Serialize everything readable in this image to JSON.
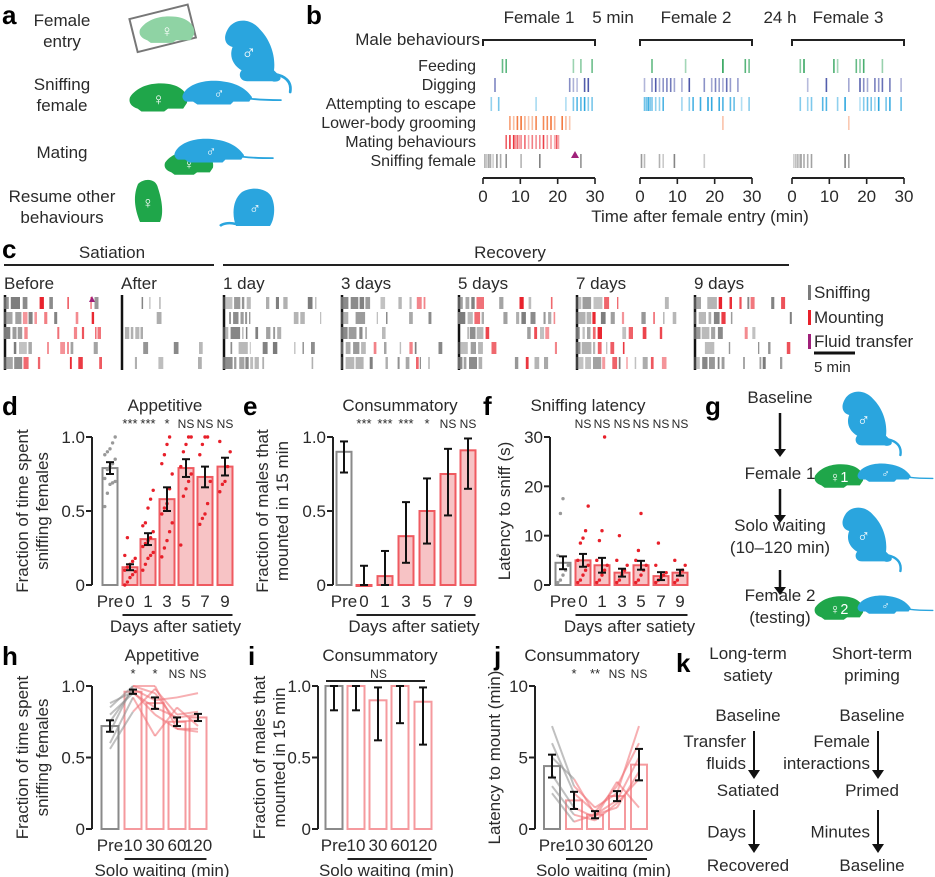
{
  "colors": {
    "male_blue": "#2aa5de",
    "female_green": "#1fa64a",
    "female_light_green": "#8fd3a4",
    "mount_red": "#e8202a",
    "bar_fill_red": "#f7c3c5",
    "bar_edge_red": "#ef5a60",
    "pre_gray": "#8a8a8a",
    "sniff_gray": "#7b7b7b",
    "feeding_green": "#1a9a4a",
    "digging_blue": "#4a55a8",
    "escape_blue": "#2aa5de",
    "grooming_orange": "#f26a2a",
    "fluid_purple": "#a0207a"
  },
  "panel_a": {
    "label": "a",
    "rows": [
      {
        "text": "Female entry",
        "lines": [
          "Female",
          "entry"
        ]
      },
      {
        "text": "Sniffing female",
        "lines": [
          "Sniffing",
          "female"
        ]
      },
      {
        "text": "Mating",
        "lines": [
          "Mating"
        ]
      },
      {
        "text": "Resume other behaviours",
        "lines": [
          "Resume other",
          "behaviours"
        ]
      }
    ],
    "female_symbol": "♀",
    "male_symbol": "♂"
  },
  "panel_b": {
    "label": "b",
    "row_header": "Male behaviours",
    "sessions": [
      "Female 1",
      "Female 2",
      "Female 3"
    ],
    "gaps": [
      "5 min",
      "24 h"
    ],
    "behaviours": [
      "Feeding",
      "Digging",
      "Attempting to escape",
      "Lower-body grooming",
      "Mating behaviours",
      "Sniffing female"
    ],
    "xlabel": "Time after female entry (min)",
    "xticks": [
      "0",
      "10",
      "20",
      "30"
    ]
  },
  "panel_c": {
    "label": "c",
    "group_satiation": "Satiation",
    "group_recovery": "Recovery",
    "conditions": [
      "Before",
      "After",
      "1 day",
      "3 days",
      "5 days",
      "7 days",
      "9 days"
    ],
    "legend": [
      "Sniffing",
      "Mounting",
      "Fluid transfer"
    ],
    "scale_bar": "5 min"
  },
  "panel_g": {
    "label": "g",
    "steps": [
      {
        "lines": [
          "Baseline"
        ]
      },
      {
        "lines": [
          "Female 1"
        ],
        "female_tag": "♀1"
      },
      {
        "lines": [
          "Solo waiting",
          "(10–120 min)"
        ]
      },
      {
        "lines": [
          "Female 2",
          "(testing)"
        ],
        "female_tag": "♀2"
      }
    ]
  },
  "panel_k": {
    "label": "k",
    "columns": [
      {
        "title": [
          "Long-term",
          "satiety"
        ],
        "states": [
          "Baseline",
          "Satiated",
          "Recovered"
        ],
        "transitions": [
          [
            "Transfer",
            "fluids"
          ],
          [
            "Days"
          ]
        ]
      },
      {
        "title": [
          "Short-term",
          "priming"
        ],
        "states": [
          "Baseline",
          "Primed",
          "Baseline"
        ],
        "transitions": [
          [
            "Female",
            "interactions"
          ],
          [
            "Minutes"
          ]
        ]
      }
    ]
  },
  "chart_data": [
    {
      "id": "d",
      "label": "d",
      "type": "bar",
      "title": "Appetitive",
      "ylabel": [
        "Fraction of time spent",
        "sniffing females"
      ],
      "xlabel": "Days after satiety",
      "categories": [
        "Pre",
        "0",
        "1",
        "3",
        "5",
        "7",
        "9"
      ],
      "values": [
        0.79,
        0.12,
        0.31,
        0.58,
        0.79,
        0.73,
        0.8
      ],
      "sem": [
        0.04,
        0.02,
        0.04,
        0.08,
        0.06,
        0.07,
        0.06
      ],
      "significance": [
        "",
        "***",
        "***",
        "*",
        "NS",
        "NS",
        "NS"
      ],
      "ylim": [
        0,
        1
      ],
      "yticks": [
        "0",
        "0.5",
        "1.0"
      ],
      "ytick_values": [
        0,
        0.5,
        1.0
      ],
      "points": [
        [
          0.53,
          0.62,
          0.68,
          0.69,
          0.7,
          0.72,
          0.78,
          0.8,
          0.82,
          0.85,
          0.88,
          0.9,
          0.92,
          0.96,
          1.0
        ],
        [
          0.0,
          0.02,
          0.05,
          0.07,
          0.09,
          0.1,
          0.12,
          0.14,
          0.16,
          0.18,
          0.2,
          0.32
        ],
        [
          0.1,
          0.14,
          0.18,
          0.2,
          0.22,
          0.26,
          0.28,
          0.3,
          0.32,
          0.36,
          0.4,
          0.42,
          0.52,
          0.58,
          0.64
        ],
        [
          0.19,
          0.25,
          0.3,
          0.36,
          0.42,
          0.48,
          0.52,
          0.55,
          0.65,
          0.75,
          0.82,
          0.88,
          0.95,
          1.0
        ],
        [
          0.27,
          0.6,
          0.65,
          0.7,
          0.75,
          0.8,
          0.9,
          0.95,
          1.0,
          1.0
        ],
        [
          0.41,
          0.45,
          0.48,
          0.55,
          0.7,
          0.88,
          0.95,
          1.0,
          1.0
        ],
        [
          0.63,
          0.68,
          0.7,
          0.8,
          0.9,
          0.97
        ]
      ]
    },
    {
      "id": "e",
      "label": "e",
      "type": "bar",
      "title": "Consummatory",
      "ylabel": [
        "Fraction of males that",
        "mounted in 15 min"
      ],
      "xlabel": "Days after satiety",
      "categories": [
        "Pre",
        "0",
        "1",
        "3",
        "5",
        "7",
        "9"
      ],
      "values": [
        0.9,
        0.0,
        0.06,
        0.33,
        0.5,
        0.75,
        0.91
      ],
      "ci_low": [
        0.76,
        0.0,
        0.0,
        0.15,
        0.28,
        0.47,
        0.65
      ],
      "ci_high": [
        0.97,
        0.13,
        0.23,
        0.56,
        0.72,
        0.92,
        0.99
      ],
      "significance": [
        "",
        "***",
        "***",
        "***",
        "*",
        "NS",
        "NS"
      ],
      "ylim": [
        0,
        1
      ],
      "yticks": [
        "0",
        "0.5",
        "1.0"
      ],
      "ytick_values": [
        0,
        0.5,
        1.0
      ]
    },
    {
      "id": "f",
      "label": "f",
      "type": "bar",
      "title": "Sniffing latency",
      "ylabel": [
        "Latency to sniff (s)"
      ],
      "xlabel": "Days after satiety",
      "categories": [
        "Pre",
        "0",
        "1",
        "3",
        "5",
        "7",
        "9"
      ],
      "values": [
        4.5,
        5.0,
        4.0,
        2.5,
        4.0,
        1.8,
        2.5
      ],
      "sem": [
        1.3,
        1.3,
        1.5,
        0.8,
        0.9,
        0.8,
        0.6
      ],
      "significance": [
        "",
        "NS",
        "NS",
        "NS",
        "NS",
        "NS",
        "NS"
      ],
      "ylim": [
        0,
        30
      ],
      "yticks": [
        "0",
        "10",
        "20",
        "30"
      ],
      "ytick_values": [
        0,
        10,
        20,
        30
      ],
      "points": [
        [
          0.5,
          1.0,
          2.0,
          3.0,
          4.0,
          6.0,
          14.5,
          17.5
        ],
        [
          0.5,
          1.0,
          2.0,
          3.0,
          4.0,
          5.0,
          8.5,
          9.5,
          11.0,
          16.0
        ],
        [
          0.5,
          1.0,
          2.0,
          3.0,
          4.0,
          5.0,
          9.0,
          11.0,
          30.0
        ],
        [
          0.5,
          1.0,
          2.0,
          3.0,
          4.0,
          5.0,
          10.0
        ],
        [
          0.5,
          1.0,
          2.0,
          3.0,
          4.0,
          5.0,
          7.0,
          14.5
        ],
        [
          0.5,
          1.0,
          1.5,
          2.0,
          2.5,
          4.0,
          8.5
        ],
        [
          0.5,
          1.0,
          2.0,
          3.0,
          4.0,
          5.0
        ]
      ]
    },
    {
      "id": "h",
      "label": "h",
      "type": "bar",
      "title": "Appetitive",
      "ylabel": [
        "Fraction of time spent",
        "sniffing females"
      ],
      "xlabel": "Solo waiting (min)",
      "categories": [
        "Pre",
        "10",
        "30",
        "60",
        "120"
      ],
      "values": [
        0.72,
        0.96,
        0.88,
        0.75,
        0.78
      ],
      "sem": [
        0.04,
        0.015,
        0.04,
        0.03,
        0.025
      ],
      "significance": [
        "",
        "*",
        "*",
        "NS",
        "NS"
      ],
      "ylim": [
        0,
        1
      ],
      "yticks": [
        "0",
        "0.5",
        "1.0"
      ],
      "ytick_values": [
        0,
        0.5,
        1.0
      ],
      "paired_lines": [
        [
          0.56,
          0.82,
          0.98,
          0.8,
          0.82
        ],
        [
          0.6,
          0.92,
          0.65,
          0.85,
          0.72
        ],
        [
          0.68,
          1.0,
          1.0,
          0.7,
          0.7
        ],
        [
          0.75,
          0.98,
          0.9,
          0.92,
          0.95
        ],
        [
          0.8,
          0.95,
          0.85,
          0.78,
          0.8
        ],
        [
          0.85,
          1.0,
          0.95,
          0.75,
          0.76
        ],
        [
          0.88,
          0.96,
          0.8,
          0.7,
          0.68
        ]
      ]
    },
    {
      "id": "i",
      "label": "i",
      "type": "bar",
      "title": "Consummatory",
      "ylabel": [
        "Fraction of males that",
        "mounted in 15 min"
      ],
      "xlabel": "Solo waiting (min)",
      "categories": [
        "Pre",
        "10",
        "30",
        "60",
        "120"
      ],
      "values": [
        1.0,
        1.0,
        0.9,
        1.0,
        0.89
      ],
      "ci_low": [
        0.83,
        0.83,
        0.62,
        0.74,
        0.59
      ],
      "ci_high": [
        1.0,
        1.0,
        0.99,
        1.0,
        0.99
      ],
      "significance_bracket": "NS",
      "ylim": [
        0,
        1
      ],
      "yticks": [
        "0",
        "0.5",
        "1.0"
      ],
      "ytick_values": [
        0,
        0.5,
        1.0
      ]
    },
    {
      "id": "j",
      "label": "j",
      "type": "bar",
      "title": "Consummatory",
      "ylabel": [
        "Latency to mount (min)"
      ],
      "xlabel": "Solo waiting (min)",
      "categories": [
        "Pre",
        "10",
        "30",
        "60",
        "120"
      ],
      "values": [
        4.4,
        2.0,
        1.0,
        2.3,
        4.5
      ],
      "sem": [
        0.8,
        0.6,
        0.25,
        0.35,
        1.1
      ],
      "significance": [
        "",
        "*",
        "**",
        "NS",
        "NS"
      ],
      "ylim": [
        0,
        10
      ],
      "yticks": [
        "0",
        "5",
        "10"
      ],
      "ytick_values": [
        0,
        5,
        10
      ],
      "paired_lines": [
        [
          7.2,
          3.0,
          1.5,
          2.5,
          7.2
        ],
        [
          6.0,
          2.5,
          1.2,
          3.0,
          6.0
        ],
        [
          5.0,
          3.5,
          1.0,
          2.0,
          5.0
        ],
        [
          3.8,
          1.5,
          0.8,
          3.3,
          1.5
        ],
        [
          3.0,
          1.0,
          0.6,
          1.8,
          3.5
        ],
        [
          2.5,
          0.5,
          1.0,
          1.5,
          4.0
        ]
      ]
    }
  ]
}
